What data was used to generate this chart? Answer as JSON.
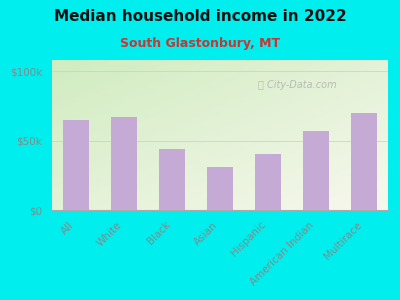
{
  "title": "Median household income in 2022",
  "subtitle": "South Glastonbury, MT",
  "categories": [
    "All",
    "White",
    "Black",
    "Asian",
    "Hispanic",
    "American Indian",
    "Multirace"
  ],
  "values": [
    65000,
    67000,
    44000,
    31000,
    40000,
    57000,
    70000
  ],
  "bar_color": "#c4aad4",
  "background_outer": "#00EEEE",
  "yticks": [
    0,
    50000,
    100000
  ],
  "ytick_labels": [
    "$0",
    "$50k",
    "$100k"
  ],
  "ylim": [
    0,
    108000
  ],
  "title_fontsize": 11,
  "subtitle_fontsize": 9,
  "tick_label_fontsize": 7.5,
  "ytick_label_color": "#888888",
  "xtick_label_color": "#888888",
  "subtitle_color": "#cc3333",
  "watermark": "City-Data.com",
  "gradient_top_left": "#d0ecc0",
  "gradient_bottom_right": "#f5f5e5"
}
